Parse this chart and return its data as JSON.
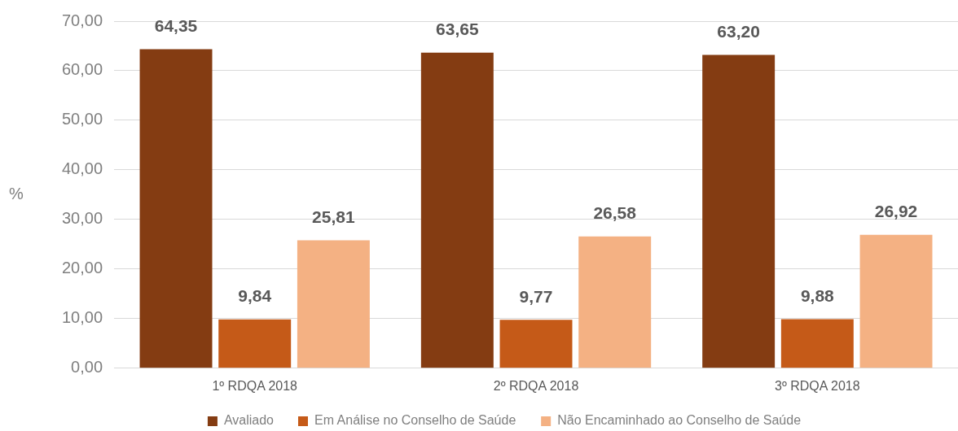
{
  "chart_data": {
    "type": "bar",
    "ylabel": "%",
    "categories": [
      "1º RDQA 2018",
      "2º RDQA 2018",
      "3º RDQA 2018"
    ],
    "series": [
      {
        "name": "Avaliado",
        "color": "#843c12",
        "values": [
          64.35,
          63.65,
          63.2
        ],
        "value_labels": [
          "64,35",
          "63,65",
          "63,20"
        ]
      },
      {
        "name": "Em Análise no Conselho de Saúde",
        "color": "#c55a18",
        "values": [
          9.84,
          9.77,
          9.88
        ],
        "value_labels": [
          "9,84",
          "9,77",
          "9,88"
        ]
      },
      {
        "name": "Não Encaminhado ao Conselho de Saúde",
        "color": "#f4b183",
        "values": [
          25.81,
          26.58,
          26.92
        ],
        "value_labels": [
          "25,81",
          "26,58",
          "26,92"
        ]
      }
    ],
    "ylim": [
      0,
      70
    ],
    "yticks": [
      {
        "value": 0,
        "label": "0,00"
      },
      {
        "value": 10,
        "label": "10,00"
      },
      {
        "value": 20,
        "label": "20,00"
      },
      {
        "value": 30,
        "label": "30,00"
      },
      {
        "value": 40,
        "label": "40,00"
      },
      {
        "value": 50,
        "label": "50,00"
      },
      {
        "value": 60,
        "label": "60,00"
      },
      {
        "value": 70,
        "label": "70,00"
      }
    ],
    "grid": "y",
    "legend": "bottom"
  }
}
